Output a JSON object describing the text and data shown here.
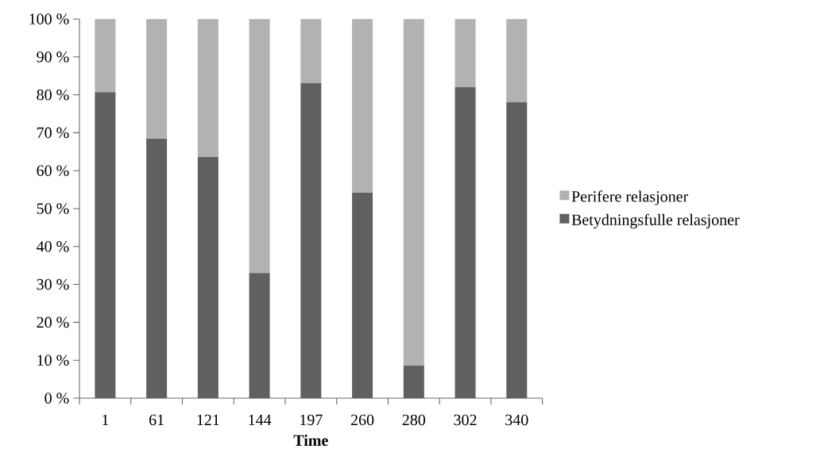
{
  "chart_data": {
    "type": "bar",
    "stacked": true,
    "xlabel": "Time",
    "categories": [
      "1",
      "61",
      "121",
      "144",
      "197",
      "260",
      "280",
      "302",
      "340"
    ],
    "series": [
      {
        "name": "Betydningsfulle relasjoner",
        "color": "#606060",
        "values": [
          80.7,
          68.4,
          63.6,
          33.0,
          83.1,
          54.2,
          8.6,
          82.0,
          78.1
        ]
      },
      {
        "name": "Perifere relasjoner",
        "color": "#b2b2b2",
        "values": [
          19.3,
          31.6,
          36.4,
          67.0,
          16.9,
          45.8,
          91.4,
          18.0,
          21.9
        ]
      }
    ],
    "ylim": [
      0,
      100
    ],
    "yticks": [
      {
        "value": 0,
        "label": "0 %"
      },
      {
        "value": 10,
        "label": "10 %"
      },
      {
        "value": 20,
        "label": "20 %"
      },
      {
        "value": 30,
        "label": "30 %"
      },
      {
        "value": 40,
        "label": "40 %"
      },
      {
        "value": 50,
        "label": "50 %"
      },
      {
        "value": 60,
        "label": "60 %"
      },
      {
        "value": 70,
        "label": "70 %"
      },
      {
        "value": 80,
        "label": "80 %"
      },
      {
        "value": 90,
        "label": "90 %"
      },
      {
        "value": 100,
        "label": "100 %"
      }
    ],
    "legend": "right"
  }
}
